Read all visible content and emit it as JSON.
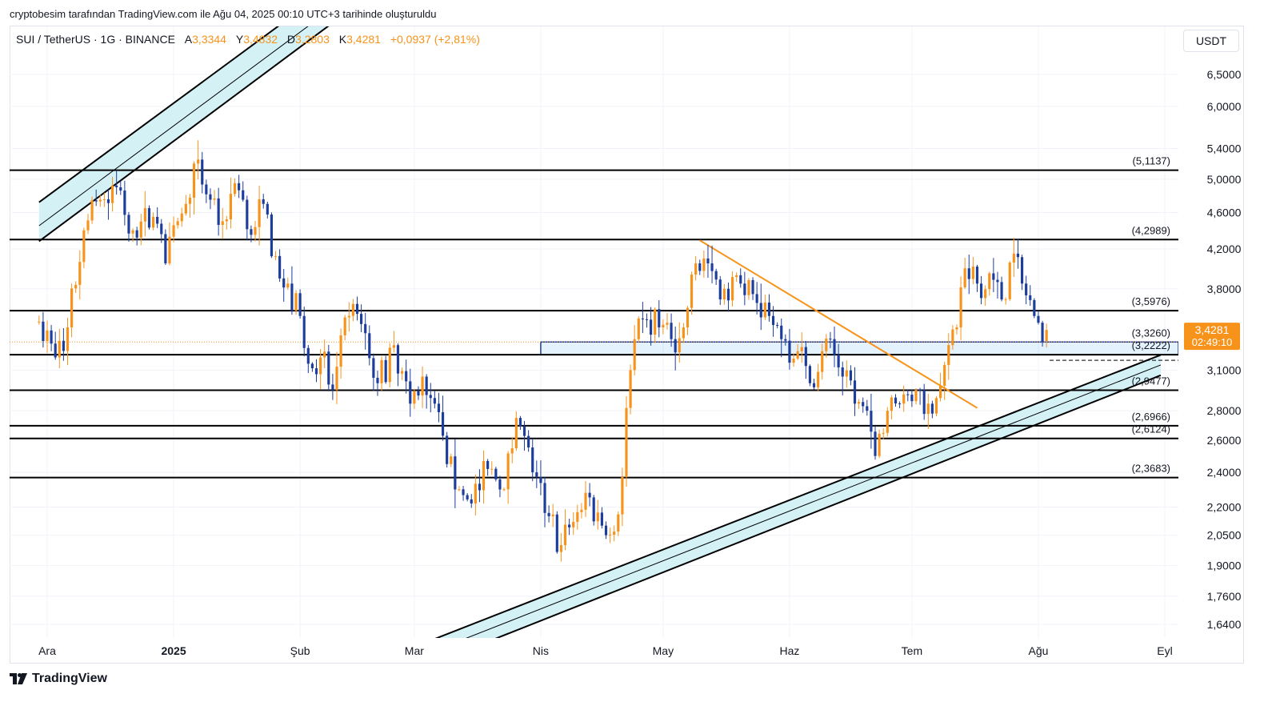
{
  "caption": "cryptobesim tarafından TradingView.com ile Ağu 04, 2025 00:10 UTC+3 tarihinde oluşturuldu",
  "legend": {
    "symbol": "SUI / TetherUS · 1G · BINANCE",
    "open_label": "A",
    "open": "3,3344",
    "high_label": "Y",
    "high": "3,4832",
    "low_label": "D",
    "low": "3,2803",
    "close_label": "K",
    "close": "3,4281",
    "change": "+0,0937 (+2,81%)"
  },
  "currency_button": "USDT",
  "brand": "TradingView",
  "colors": {
    "up": "#f7931a",
    "down": "#1c3d9c",
    "level": "#000000",
    "trendline": "#f7931a",
    "channel_fill": "#d4f1f6",
    "last_price_bg": "#f7931a",
    "zone": "#1c3d9c"
  },
  "price_badge": {
    "price": "3,4281",
    "countdown": "02:49:10"
  },
  "chart_data": {
    "type": "candlestick",
    "y_scale": "log",
    "ylim": [
      1.55,
      7.0
    ],
    "x_ticks": [
      {
        "label": "Ara",
        "date": "2024-12-01",
        "bold": false
      },
      {
        "label": "2025",
        "date": "2025-01-01",
        "bold": true
      },
      {
        "label": "Şub",
        "date": "2025-02-01",
        "bold": false
      },
      {
        "label": "Mar",
        "date": "2025-03-01",
        "bold": false
      },
      {
        "label": "Nis",
        "date": "2025-04-01",
        "bold": false
      },
      {
        "label": "May",
        "date": "2025-05-01",
        "bold": false
      },
      {
        "label": "Haz",
        "date": "2025-06-01",
        "bold": false
      },
      {
        "label": "Tem",
        "date": "2025-07-01",
        "bold": false
      },
      {
        "label": "Ağu",
        "date": "2025-08-01",
        "bold": false
      },
      {
        "label": "Eyl",
        "date": "2025-09-01",
        "bold": false
      }
    ],
    "y_ticks": [
      {
        "value": 6.5,
        "label": "6,5000"
      },
      {
        "value": 6.0,
        "label": "6,0000"
      },
      {
        "value": 5.4,
        "label": "5,4000"
      },
      {
        "value": 5.0,
        "label": "5,0000"
      },
      {
        "value": 4.6,
        "label": "4,6000"
      },
      {
        "value": 4.2,
        "label": "4,2000"
      },
      {
        "value": 3.8,
        "label": "3,8000"
      },
      {
        "value": 3.1,
        "label": "3,1000"
      },
      {
        "value": 2.8,
        "label": "2,8000"
      },
      {
        "value": 2.6,
        "label": "2,6000"
      },
      {
        "value": 2.4,
        "label": "2,4000"
      },
      {
        "value": 2.2,
        "label": "2,2000"
      },
      {
        "value": 2.05,
        "label": "2,0500"
      },
      {
        "value": 1.9,
        "label": "1,9000"
      },
      {
        "value": 1.76,
        "label": "1,7600"
      },
      {
        "value": 1.64,
        "label": "1,6400"
      }
    ],
    "levels": [
      {
        "value": 5.1137,
        "label": "(5,1137)"
      },
      {
        "value": 4.2989,
        "label": "(4,2989)"
      },
      {
        "value": 3.5976,
        "label": "(3,5976)"
      },
      {
        "value": 3.326,
        "label": "(3,3260)"
      },
      {
        "value": 3.2222,
        "label": "(3,2222)"
      },
      {
        "value": 2.9477,
        "label": "(2,9477)"
      },
      {
        "value": 2.6966,
        "label": "(2,6966)"
      },
      {
        "value": 2.6124,
        "label": "(2,6124)"
      },
      {
        "value": 2.3683,
        "label": "(2,3683)"
      }
    ],
    "last_close": 3.4281,
    "trendline": {
      "from": [
        "2025-05-10",
        4.29
      ],
      "to": [
        "2025-07-17",
        2.82
      ]
    },
    "zone": {
      "from": "2025-04-01",
      "top": 3.326,
      "bottom": 3.2222
    },
    "upper_channel": {
      "outer_top": [
        [
          "2024-11-29",
          4.72
        ],
        [
          "2025-04-01",
          11.9
        ]
      ],
      "mid": [
        [
          "2024-11-29",
          4.45
        ],
        [
          "2025-04-01",
          11.3
        ]
      ],
      "outer_bottom": [
        [
          "2024-11-29",
          4.28
        ],
        [
          "2025-04-01",
          10.9
        ]
      ]
    },
    "lower_channel": {
      "outer_top": [
        [
          "2025-03-01",
          1.55
        ],
        [
          "2025-08-31",
          3.22
        ]
      ],
      "mid": [
        [
          "2025-03-01",
          1.505
        ],
        [
          "2025-08-31",
          3.14
        ]
      ],
      "outer_bottom": [
        [
          "2025-03-01",
          1.46
        ],
        [
          "2025-08-31",
          3.06
        ]
      ]
    },
    "waypoints": [
      [
        "2024-11-29",
        3.5
      ],
      [
        "2024-12-03",
        3.2
      ],
      [
        "2024-12-06",
        3.45
      ],
      [
        "2024-12-10",
        4.4
      ],
      [
        "2024-12-14",
        4.75
      ],
      [
        "2024-12-18",
        4.9
      ],
      [
        "2024-12-22",
        4.4
      ],
      [
        "2024-12-27",
        4.55
      ],
      [
        "2024-12-30",
        4.05
      ],
      [
        "2025-01-04",
        4.7
      ],
      [
        "2025-01-06",
        5.2
      ],
      [
        "2025-01-10",
        4.75
      ],
      [
        "2025-01-13",
        4.5
      ],
      [
        "2025-01-16",
        4.95
      ],
      [
        "2025-01-20",
        4.35
      ],
      [
        "2025-01-23",
        4.7
      ],
      [
        "2025-01-27",
        3.9
      ],
      [
        "2025-02-01",
        3.55
      ],
      [
        "2025-02-03",
        3.15
      ],
      [
        "2025-02-06",
        3.2
      ],
      [
        "2025-02-09",
        2.95
      ],
      [
        "2025-02-13",
        3.55
      ],
      [
        "2025-02-17",
        3.4
      ],
      [
        "2025-02-20",
        3.0
      ],
      [
        "2025-02-24",
        3.3
      ],
      [
        "2025-02-28",
        2.85
      ],
      [
        "2025-03-03",
        3.05
      ],
      [
        "2025-03-06",
        2.85
      ],
      [
        "2025-03-09",
        2.45
      ],
      [
        "2025-03-12",
        2.3
      ],
      [
        "2025-03-15",
        2.22
      ],
      [
        "2025-03-19",
        2.42
      ],
      [
        "2025-03-23",
        2.3
      ],
      [
        "2025-03-26",
        2.75
      ],
      [
        "2025-03-30",
        2.4
      ],
      [
        "2025-04-03",
        2.15
      ],
      [
        "2025-04-06",
        2.0
      ],
      [
        "2025-04-09",
        2.12
      ],
      [
        "2025-04-12",
        2.28
      ],
      [
        "2025-04-16",
        2.1
      ],
      [
        "2025-04-20",
        2.16
      ],
      [
        "2025-04-23",
        3.1
      ],
      [
        "2025-04-26",
        3.52
      ],
      [
        "2025-04-30",
        3.45
      ],
      [
        "2025-05-03",
        3.35
      ],
      [
        "2025-05-06",
        3.45
      ],
      [
        "2025-05-09",
        4.05
      ],
      [
        "2025-05-12",
        4.05
      ],
      [
        "2025-05-16",
        3.8
      ],
      [
        "2025-05-20",
        3.85
      ],
      [
        "2025-05-23",
        3.75
      ],
      [
        "2025-05-27",
        3.55
      ],
      [
        "2025-05-30",
        3.35
      ],
      [
        "2025-06-03",
        3.25
      ],
      [
        "2025-06-06",
        3.0
      ],
      [
        "2025-06-09",
        3.25
      ],
      [
        "2025-06-11",
        3.35
      ],
      [
        "2025-06-14",
        3.05
      ],
      [
        "2025-06-17",
        2.85
      ],
      [
        "2025-06-20",
        2.8
      ],
      [
        "2025-06-22",
        2.5
      ],
      [
        "2025-06-25",
        2.8
      ],
      [
        "2025-06-28",
        2.85
      ],
      [
        "2025-07-02",
        2.95
      ],
      [
        "2025-07-05",
        2.85
      ],
      [
        "2025-07-08",
        2.98
      ],
      [
        "2025-07-10",
        3.3
      ],
      [
        "2025-07-12",
        3.45
      ],
      [
        "2025-07-14",
        4.0
      ],
      [
        "2025-07-17",
        3.85
      ],
      [
        "2025-07-20",
        3.95
      ],
      [
        "2025-07-23",
        3.7
      ],
      [
        "2025-07-26",
        4.15
      ],
      [
        "2025-07-28",
        3.85
      ],
      [
        "2025-07-31",
        3.55
      ],
      [
        "2025-08-02",
        3.33
      ],
      [
        "2025-08-03",
        3.428
      ]
    ]
  }
}
